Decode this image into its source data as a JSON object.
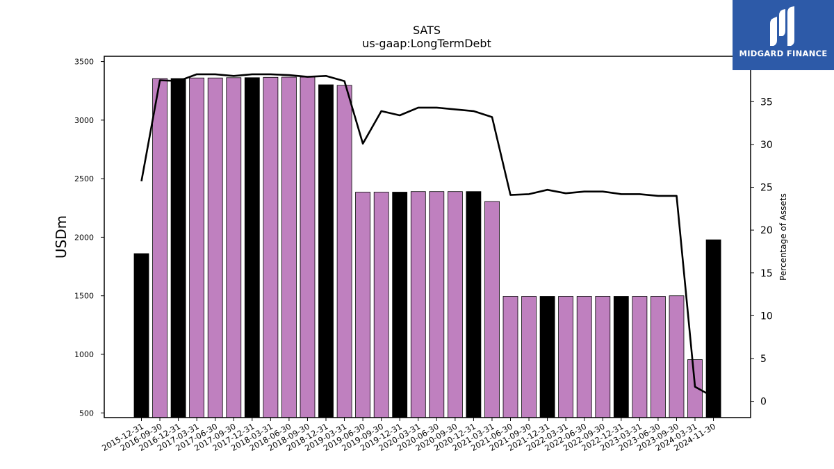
{
  "brand": {
    "name": "MIDGARD FINANCE",
    "logo_icon": "midgard-m-logo-icon",
    "background": "#2d5aa8"
  },
  "chart_data": {
    "type": "bar",
    "title": "SATS",
    "subtitle": "us-gaap:LongTermDebt",
    "ylabel": "USDm",
    "y2label": "Percentage of Assets",
    "ylim": [
      460,
      3545
    ],
    "y2lim": [
      -1.9,
      40.3
    ],
    "yticks": [
      500,
      1000,
      1500,
      2000,
      2500,
      3000,
      3500
    ],
    "y2ticks": [
      0,
      5,
      10,
      15,
      20,
      25,
      30,
      35
    ],
    "bar_colors": {
      "annual": "#000000",
      "quarterly": "#bf80bf"
    },
    "line_color": "#000000",
    "categories": [
      "2015-12-31",
      "2016-09-30",
      "2016-12-31",
      "2017-03-31",
      "2017-06-30",
      "2017-09-30",
      "2017-12-31",
      "2018-03-31",
      "2018-06-30",
      "2018-09-30",
      "2018-12-31",
      "2019-03-31",
      "2019-06-30",
      "2019-09-30",
      "2019-12-31",
      "2020-03-31",
      "2020-06-30",
      "2020-09-30",
      "2020-12-31",
      "2021-03-31",
      "2021-06-30",
      "2021-09-30",
      "2021-12-31",
      "2022-03-31",
      "2022-06-30",
      "2022-09-30",
      "2022-12-31",
      "2023-03-31",
      "2023-06-30",
      "2023-09-30",
      "2024-03-31",
      "2024-11-30"
    ],
    "series": [
      {
        "kind": "bar",
        "values": [
          1860,
          3355,
          3355,
          3360,
          3360,
          3362,
          3362,
          3365,
          3367,
          3367,
          3302,
          3297,
          2385,
          2385,
          2385,
          2390,
          2390,
          2390,
          2390,
          2305,
          1495,
          1495,
          1495,
          1495,
          1495,
          1495,
          1495,
          1495,
          1495,
          1500,
          955,
          1978
        ],
        "annual": [
          true,
          false,
          true,
          false,
          false,
          false,
          true,
          false,
          false,
          false,
          true,
          false,
          false,
          false,
          true,
          false,
          false,
          false,
          true,
          false,
          false,
          false,
          true,
          false,
          false,
          false,
          true,
          false,
          false,
          false,
          false,
          true
        ]
      },
      {
        "kind": "line",
        "axis": "y2",
        "values": [
          25.7,
          37.5,
          37.4,
          38.2,
          38.2,
          38.0,
          38.2,
          38.2,
          38.1,
          37.9,
          38.0,
          37.4,
          30.1,
          33.9,
          33.4,
          34.3,
          34.3,
          34.1,
          33.9,
          33.2,
          24.1,
          24.2,
          24.7,
          24.3,
          24.5,
          24.5,
          24.2,
          24.2,
          24.0,
          24.0,
          1.7,
          0.5
        ]
      }
    ]
  }
}
